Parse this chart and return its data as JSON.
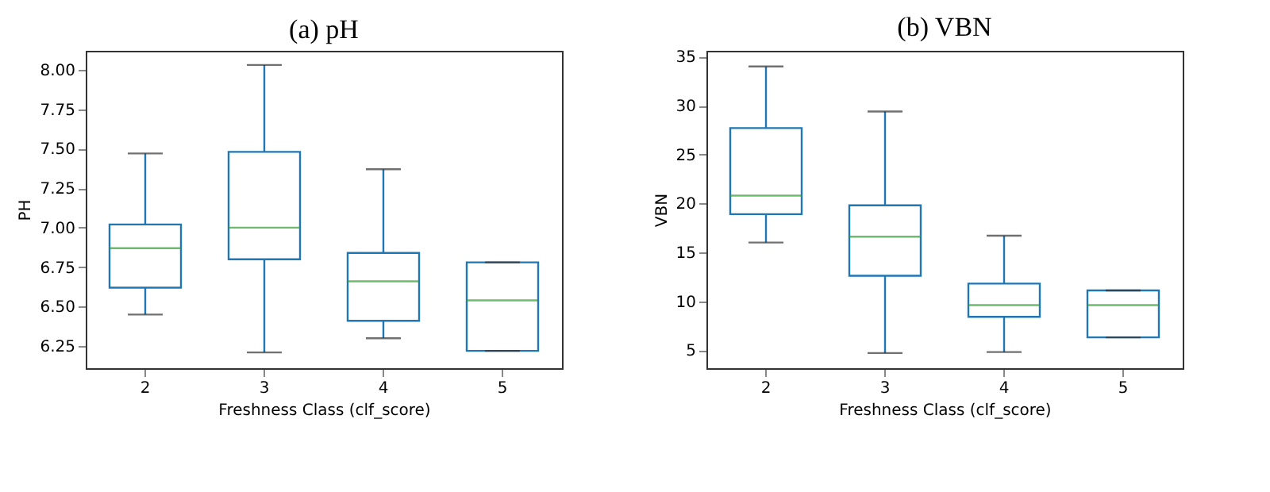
{
  "chart_data": [
    {
      "type": "box",
      "title": "(a) pH",
      "xlabel": "Freshness Class (clf_score)",
      "ylabel": "PH",
      "categories": [
        "2",
        "3",
        "4",
        "5"
      ],
      "color": "#1f77b4",
      "grid": false,
      "boxes": [
        {
          "low": 6.45,
          "q1": 6.62,
          "median": 6.87,
          "q3": 7.02,
          "high": 7.47
        },
        {
          "low": 6.21,
          "q1": 6.8,
          "median": 7.0,
          "q3": 7.48,
          "high": 8.03
        },
        {
          "low": 6.3,
          "q1": 6.41,
          "median": 6.66,
          "q3": 6.84,
          "high": 7.37
        },
        {
          "low": 6.22,
          "q1": 6.22,
          "median": 6.54,
          "q3": 6.78,
          "high": 6.78
        }
      ],
      "ylim": [
        6.11,
        8.12
      ],
      "yticks": [
        {
          "value": 6.25,
          "label": "6.25"
        },
        {
          "value": 6.5,
          "label": "6.50"
        },
        {
          "value": 6.75,
          "label": "6.75"
        },
        {
          "value": 7,
          "label": "7.00"
        },
        {
          "value": 7.25,
          "label": "7.25"
        },
        {
          "value": 7.5,
          "label": "7.50"
        },
        {
          "value": 7.75,
          "label": "7.75"
        },
        {
          "value": 8,
          "label": "8.00"
        }
      ]
    },
    {
      "type": "box",
      "title": "(b) VBN",
      "xlabel": "Freshness Class (clf_score)",
      "ylabel": "VBN",
      "categories": [
        "2",
        "3",
        "4",
        "5"
      ],
      "color": "#1f77b4",
      "grid": false,
      "boxes": [
        {
          "low": 16.0,
          "q1": 18.9,
          "median": 20.8,
          "q3": 27.7,
          "high": 34.0
        },
        {
          "low": 4.7,
          "q1": 12.6,
          "median": 16.6,
          "q3": 19.8,
          "high": 29.4
        },
        {
          "low": 4.8,
          "q1": 8.4,
          "median": 9.6,
          "q3": 11.8,
          "high": 16.7
        },
        {
          "low": 6.3,
          "q1": 6.3,
          "median": 9.6,
          "q3": 11.1,
          "high": 11.1
        }
      ],
      "ylim": [
        3.15,
        35.6
      ],
      "yticks": [
        5,
        10,
        15,
        20,
        25,
        30,
        35
      ]
    }
  ]
}
